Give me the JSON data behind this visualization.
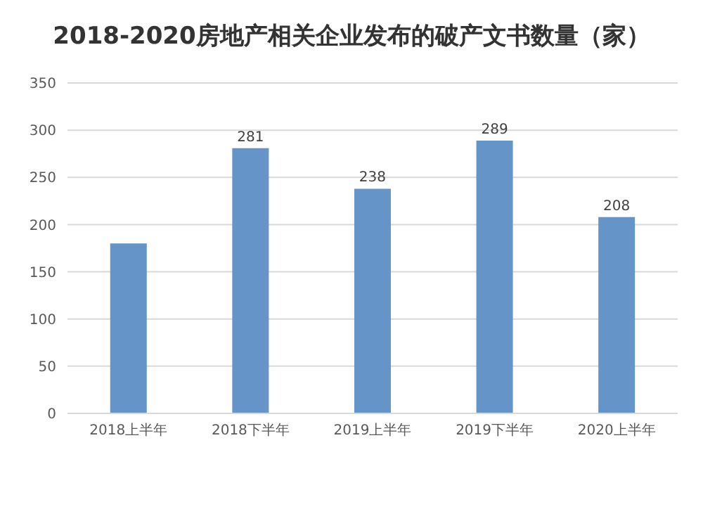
{
  "chart_data": {
    "type": "bar",
    "title": "2018-2020房地产相关企业发布的破产文书数量（家）",
    "categories": [
      "2018上半年",
      "2018下半年",
      "2019上半年",
      "2019下半年",
      "2020上半年"
    ],
    "values": [
      180,
      281,
      238,
      289,
      208
    ],
    "value_labels": [
      null,
      "281",
      "238",
      "289",
      "208"
    ],
    "color": "#6494c8",
    "ylim": [
      0,
      350
    ],
    "yticks": [
      0,
      50,
      100,
      150,
      200,
      250,
      300,
      350
    ],
    "grid": "y"
  }
}
